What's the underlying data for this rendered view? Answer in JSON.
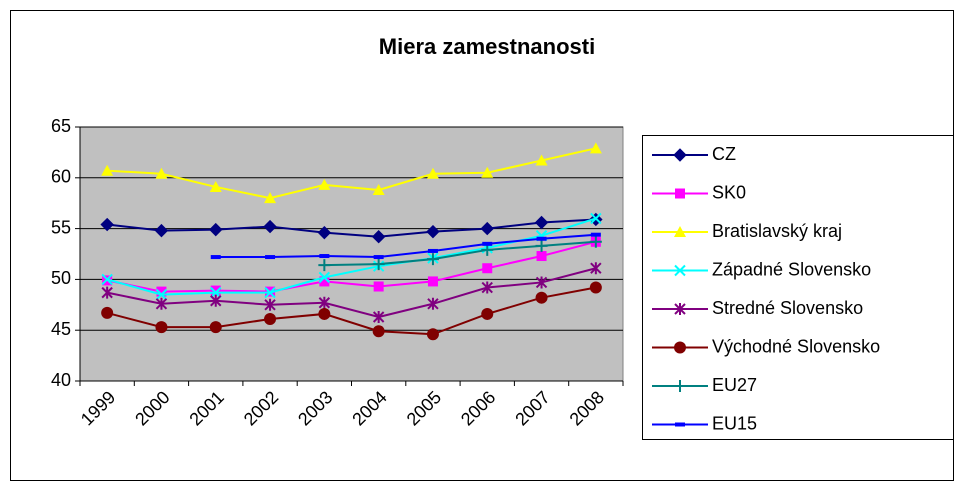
{
  "chart_data": {
    "type": "line",
    "title": "Miera zamestnanosti",
    "categories": [
      "1999",
      "2000",
      "2001",
      "2002",
      "2003",
      "2004",
      "2005",
      "2006",
      "2007",
      "2008"
    ],
    "ylim": [
      40,
      65
    ],
    "yticks": [
      40,
      45,
      50,
      55,
      60,
      65
    ],
    "grid": true,
    "legend": "right",
    "series": [
      {
        "name": "CZ",
        "color": "#000080",
        "marker": "diamond",
        "values": [
          55.4,
          54.8,
          54.9,
          55.2,
          54.6,
          54.2,
          54.7,
          55.0,
          55.6,
          55.9
        ]
      },
      {
        "name": "SK0",
        "color": "#ff00ff",
        "marker": "square",
        "values": [
          49.9,
          48.8,
          48.9,
          48.8,
          49.8,
          49.3,
          49.8,
          51.1,
          52.3,
          53.7
        ]
      },
      {
        "name": "Bratislavský kraj",
        "color": "#ffff00",
        "marker": "triangle",
        "values": [
          60.7,
          60.4,
          59.1,
          58.0,
          59.3,
          58.8,
          60.4,
          60.5,
          61.7,
          62.9
        ]
      },
      {
        "name": "Západné Slovensko",
        "color": "#00ffff",
        "marker": "x",
        "values": [
          50.0,
          48.5,
          48.7,
          48.7,
          50.2,
          51.3,
          52.1,
          53.1,
          54.3,
          56.0
        ]
      },
      {
        "name": "Stredné Slovensko",
        "color": "#800080",
        "marker": "star",
        "values": [
          48.7,
          47.6,
          47.9,
          47.5,
          47.7,
          46.3,
          47.6,
          49.2,
          49.7,
          51.1
        ]
      },
      {
        "name": "Východné Slovensko",
        "color": "#800000",
        "marker": "circle",
        "values": [
          46.7,
          45.3,
          45.3,
          46.1,
          46.6,
          44.9,
          44.6,
          46.6,
          48.2,
          49.2
        ]
      },
      {
        "name": "EU27",
        "color": "#008080",
        "marker": "plus",
        "values": [
          null,
          null,
          null,
          null,
          51.4,
          51.5,
          52.0,
          52.9,
          53.3,
          53.7
        ]
      },
      {
        "name": "EU15",
        "color": "#0000ff",
        "marker": "dash",
        "values": [
          null,
          null,
          52.2,
          52.2,
          52.3,
          52.2,
          52.8,
          53.5,
          54.0,
          54.4
        ]
      }
    ]
  }
}
